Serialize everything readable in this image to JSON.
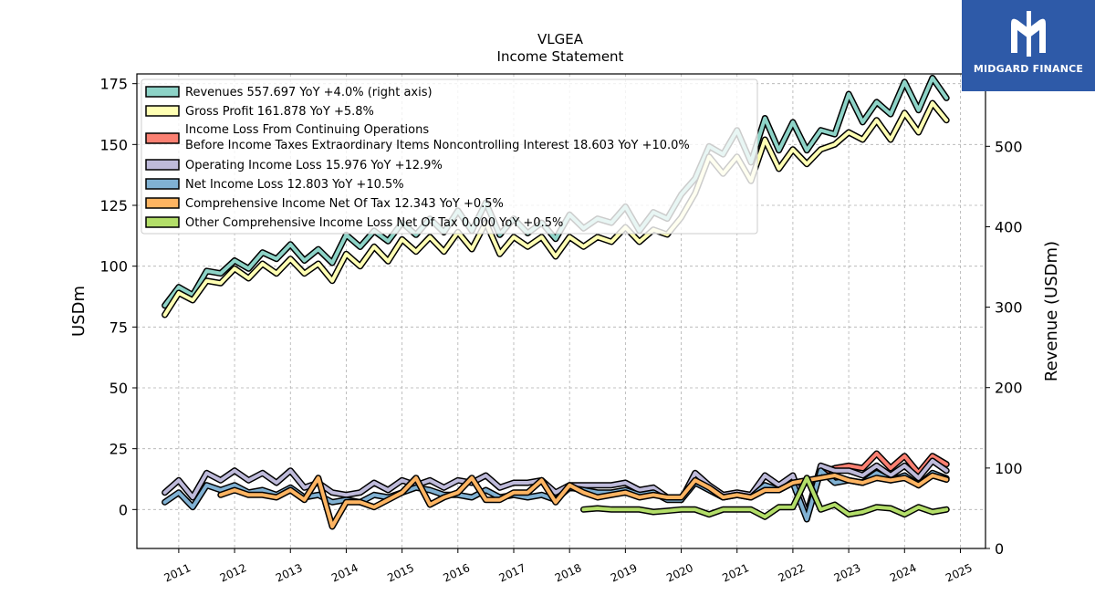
{
  "brand": {
    "name": "MIDGARD FINANCE",
    "logo_icon": "midgard-m-monogram-icon",
    "color": "#2e5aa8"
  },
  "chart_data": {
    "type": "line",
    "title": "VLGEA",
    "subtitle": "Income Statement",
    "ylabel": "USDm",
    "ylabel_right": "Revenue (USDm)",
    "ylim": [
      -16,
      179
    ],
    "ylim_right": [
      0,
      590
    ],
    "yticks": [
      "175",
      "150",
      "125",
      "100",
      "75",
      "50",
      "25",
      "0"
    ],
    "yticks_right": [
      "500",
      "400",
      "300",
      "200",
      "100",
      "0"
    ],
    "xticks": [
      "2011",
      "2012",
      "2013",
      "2014",
      "2015",
      "2016",
      "2017",
      "2018",
      "2019",
      "2020",
      "2021",
      "2022",
      "2023",
      "2024",
      "2025"
    ],
    "xlim": [
      2010.25,
      2025.45
    ],
    "grid": true,
    "legend_position": "upper-left",
    "series": [
      {
        "name": "Revenues",
        "legend": "Revenues  557.697 YoY +4.0% (right axis)",
        "color": "#8dd3c7",
        "axis": "right",
        "x": [
          2010.75,
          2011.0,
          2011.25,
          2011.5,
          2011.75,
          2012.0,
          2012.25,
          2012.5,
          2012.75,
          2013.0,
          2013.25,
          2013.5,
          2013.75,
          2014.0,
          2014.25,
          2014.5,
          2014.75,
          2015.0,
          2015.25,
          2015.5,
          2015.75,
          2016.0,
          2016.25,
          2016.5,
          2016.75,
          2017.0,
          2017.25,
          2017.5,
          2017.75,
          2018.0,
          2018.25,
          2018.5,
          2018.75,
          2019.0,
          2019.25,
          2019.5,
          2019.75,
          2020.0,
          2020.25,
          2020.5,
          2020.75,
          2021.0,
          2021.25,
          2021.5,
          2021.75,
          2022.0,
          2022.25,
          2022.5,
          2022.75,
          2023.0,
          2023.25,
          2023.5,
          2023.75,
          2024.0,
          2024.25,
          2024.5,
          2024.75
        ],
        "values": [
          302,
          325,
          315,
          345,
          342,
          358,
          348,
          368,
          360,
          378,
          358,
          372,
          355,
          390,
          375,
          395,
          382,
          405,
          390,
          410,
          393,
          420,
          395,
          430,
          390,
          410,
          392,
          405,
          385,
          415,
          398,
          410,
          405,
          425,
          395,
          418,
          410,
          440,
          460,
          500,
          490,
          520,
          480,
          535,
          495,
          530,
          495,
          520,
          515,
          565,
          530,
          555,
          540,
          580,
          545,
          585,
          560
        ]
      },
      {
        "name": "Gross Profit",
        "legend": "Gross Profit  161.878 YoY +5.8%",
        "color": "#ffffb3",
        "axis": "left",
        "x": [
          2010.75,
          2011.0,
          2011.25,
          2011.5,
          2011.75,
          2012.0,
          2012.25,
          2012.5,
          2012.75,
          2013.0,
          2013.25,
          2013.5,
          2013.75,
          2014.0,
          2014.25,
          2014.5,
          2014.75,
          2015.0,
          2015.25,
          2015.5,
          2015.75,
          2016.0,
          2016.25,
          2016.5,
          2016.75,
          2017.0,
          2017.25,
          2017.5,
          2017.75,
          2018.0,
          2018.25,
          2018.5,
          2018.75,
          2019.0,
          2019.25,
          2019.5,
          2019.75,
          2020.0,
          2020.25,
          2020.5,
          2020.75,
          2021.0,
          2021.25,
          2021.5,
          2021.75,
          2022.0,
          2022.25,
          2022.5,
          2022.75,
          2023.0,
          2023.25,
          2023.5,
          2023.75,
          2024.0,
          2024.25,
          2024.5,
          2024.75
        ],
        "values": [
          80,
          89,
          86,
          94,
          93,
          99,
          95,
          101,
          97,
          103,
          97,
          101,
          94,
          105,
          100,
          108,
          102,
          111,
          106,
          112,
          106,
          114,
          107,
          118,
          105,
          112,
          108,
          112,
          104,
          112,
          108,
          112,
          110,
          116,
          110,
          115,
          113,
          120,
          130,
          145,
          138,
          145,
          135,
          152,
          140,
          148,
          142,
          148,
          150,
          155,
          152,
          160,
          152,
          163,
          155,
          167,
          160
        ]
      },
      {
        "name": "Income Loss From Continuing Operations Before Income Taxes Extraordinary Items Noncontrolling Interest",
        "legend_line1": "Income Loss From Continuing Operations",
        "legend_line2": "Before Income Taxes Extraordinary Items Noncontrolling Interest  18.603 YoY +10.0%",
        "color": "#fb8072",
        "axis": "left",
        "x": [
          2022.5,
          2022.75,
          2023.0,
          2023.25,
          2023.5,
          2023.75,
          2024.0,
          2024.25,
          2024.5,
          2024.75
        ],
        "values": [
          15,
          17,
          18,
          17,
          23,
          17,
          22,
          15,
          22,
          18.6
        ]
      },
      {
        "name": "Operating Income Loss",
        "legend": "Operating Income Loss  15.976 YoY +12.9%",
        "color": "#bebada",
        "axis": "left",
        "x": [
          2010.75,
          2011.0,
          2011.25,
          2011.5,
          2011.75,
          2012.0,
          2012.25,
          2012.5,
          2012.75,
          2013.0,
          2013.25,
          2013.5,
          2013.75,
          2014.0,
          2014.25,
          2014.5,
          2014.75,
          2015.0,
          2015.25,
          2015.5,
          2015.75,
          2016.0,
          2016.25,
          2016.5,
          2016.75,
          2017.0,
          2017.25,
          2017.5,
          2017.75,
          2018.0,
          2018.25,
          2018.5,
          2018.75,
          2019.0,
          2019.25,
          2019.5,
          2019.75,
          2020.0,
          2020.25,
          2020.5,
          2020.75,
          2021.0,
          2021.25,
          2021.5,
          2021.75,
          2022.0,
          2022.25,
          2022.5,
          2022.75,
          2023.0,
          2023.25,
          2023.5,
          2023.75,
          2024.0,
          2024.25,
          2024.5,
          2024.75
        ],
        "values": [
          7,
          12,
          5,
          15,
          12,
          16,
          12,
          15,
          11,
          16,
          9,
          11,
          7,
          6,
          7,
          11,
          8,
          12,
          10,
          12,
          9,
          12,
          11,
          14,
          9,
          11,
          11,
          12,
          7,
          10,
          10,
          10,
          10,
          11,
          8,
          9,
          5,
          4,
          15,
          10,
          6,
          7,
          6,
          14,
          10,
          14,
          -2,
          18,
          16,
          16,
          14,
          18,
          14,
          18,
          13,
          20,
          16
        ]
      },
      {
        "name": "Net Income Loss",
        "legend": "Net Income Loss  12.803 YoY +10.5%",
        "color": "#80b1d3",
        "axis": "left",
        "x": [
          2010.75,
          2011.0,
          2011.25,
          2011.5,
          2011.75,
          2012.0,
          2012.25,
          2012.5,
          2012.75,
          2013.0,
          2013.25,
          2013.5,
          2013.75,
          2014.0,
          2014.25,
          2014.5,
          2014.75,
          2015.0,
          2015.25,
          2015.5,
          2015.75,
          2016.0,
          2016.25,
          2016.5,
          2016.75,
          2017.0,
          2017.25,
          2017.5,
          2017.75,
          2018.0,
          2018.25,
          2018.5,
          2018.75,
          2019.0,
          2019.25,
          2019.5,
          2019.75,
          2020.0,
          2020.25,
          2020.5,
          2020.75,
          2021.0,
          2021.25,
          2021.5,
          2021.75,
          2022.0,
          2022.25,
          2022.5,
          2022.75,
          2023.0,
          2023.25,
          2023.5,
          2023.75,
          2024.0,
          2024.25,
          2024.5,
          2024.75
        ],
        "values": [
          3,
          7,
          1,
          10,
          8,
          10,
          7,
          8,
          6,
          9,
          5,
          6,
          3,
          4,
          3,
          6,
          5,
          7,
          9,
          8,
          6,
          6,
          5,
          8,
          5,
          6,
          5,
          6,
          4,
          9,
          8,
          7,
          7,
          8,
          6,
          7,
          4,
          4,
          11,
          8,
          5,
          6,
          5,
          10,
          8,
          11,
          -4,
          16,
          11,
          12,
          11,
          15,
          12,
          14,
          10,
          15,
          12.8
        ]
      },
      {
        "name": "Comprehensive Income Net Of Tax",
        "legend": "Comprehensive Income Net Of Tax  12.343 YoY +0.5%",
        "color": "#fdb462",
        "axis": "left",
        "x": [
          2011.75,
          2012.0,
          2012.25,
          2012.5,
          2012.75,
          2013.0,
          2013.25,
          2013.5,
          2013.75,
          2014.0,
          2014.25,
          2014.5,
          2014.75,
          2015.0,
          2015.25,
          2015.5,
          2015.75,
          2016.0,
          2016.25,
          2016.5,
          2016.75,
          2017.0,
          2017.25,
          2017.5,
          2017.75,
          2018.0,
          2018.25,
          2018.5,
          2018.75,
          2019.0,
          2019.25,
          2019.5,
          2019.75,
          2020.0,
          2020.25,
          2020.5,
          2020.75,
          2021.0,
          2021.25,
          2021.5,
          2021.75,
          2022.0,
          2022.25,
          2022.5,
          2022.75,
          2023.0,
          2023.25,
          2023.5,
          2023.75,
          2024.0,
          2024.25,
          2024.5,
          2024.75
        ],
        "values": [
          6,
          8,
          6,
          6,
          5,
          8,
          4,
          13,
          -7,
          3,
          3,
          1,
          4,
          7,
          13,
          2,
          5,
          7,
          13,
          4,
          4,
          7,
          7,
          12,
          3,
          10,
          7,
          5,
          6,
          7,
          5,
          6,
          5,
          5,
          12,
          9,
          5,
          6,
          5,
          8,
          8,
          11,
          12,
          13,
          14,
          12,
          11,
          13,
          12,
          13,
          10,
          14,
          12.3
        ]
      },
      {
        "name": "Other Comprehensive Income Loss Net Of Tax",
        "legend": "Other Comprehensive Income Loss Net Of Tax  0.000 YoY +0.5%",
        "color": "#b3de69",
        "axis": "left",
        "x": [
          2018.25,
          2018.5,
          2018.75,
          2019.0,
          2019.25,
          2019.5,
          2019.75,
          2020.0,
          2020.25,
          2020.5,
          2020.75,
          2021.0,
          2021.25,
          2021.5,
          2021.75,
          2022.0,
          2022.25,
          2022.5,
          2022.75,
          2023.0,
          2023.25,
          2023.5,
          2023.75,
          2024.0,
          2024.25,
          2024.5,
          2024.75
        ],
        "values": [
          0,
          0.5,
          0,
          0,
          0,
          -1,
          -0.5,
          0,
          0,
          -2,
          0,
          0,
          0,
          -3,
          1,
          1,
          13,
          0,
          2,
          -2,
          -1,
          1,
          0.5,
          -2,
          1,
          -1,
          0
        ]
      }
    ]
  }
}
